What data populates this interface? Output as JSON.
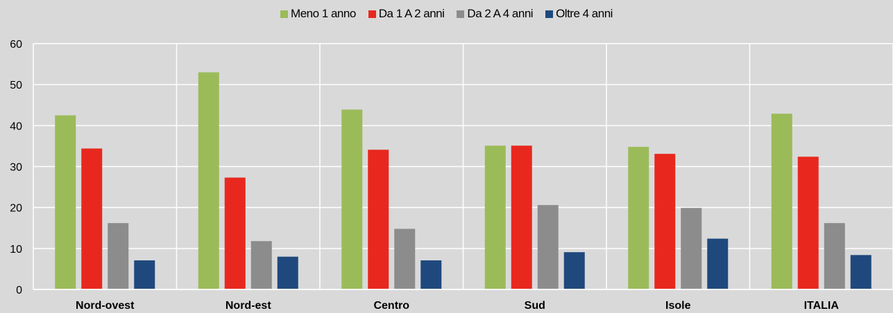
{
  "chart_data": {
    "type": "bar",
    "title": "",
    "xlabel": "",
    "ylabel": "",
    "categories": [
      "Nord-ovest",
      "Nord-est",
      "Centro",
      "Sud",
      "Isole",
      "ITALIA"
    ],
    "series": [
      {
        "name": "Meno 1 anno",
        "color": "#9bbb59",
        "values": [
          42.5,
          53.0,
          43.9,
          35.1,
          34.8,
          42.9
        ]
      },
      {
        "name": "Da 1 A 2 anni",
        "color": "#e8281e",
        "values": [
          34.4,
          27.3,
          34.1,
          35.1,
          33.1,
          32.4
        ]
      },
      {
        "name": "Da 2 A 4 anni",
        "color": "#8c8c8c",
        "values": [
          16.2,
          11.8,
          14.8,
          20.6,
          19.9,
          16.2
        ]
      },
      {
        "name": "Oltre 4 anni",
        "color": "#1f497d",
        "values": [
          7.1,
          8.0,
          7.1,
          9.1,
          12.4,
          8.4
        ]
      }
    ],
    "ylim": [
      0,
      60
    ],
    "yticks": [
      0,
      10,
      20,
      30,
      40,
      50,
      60
    ],
    "grid": true,
    "legend_position": "top-center"
  }
}
